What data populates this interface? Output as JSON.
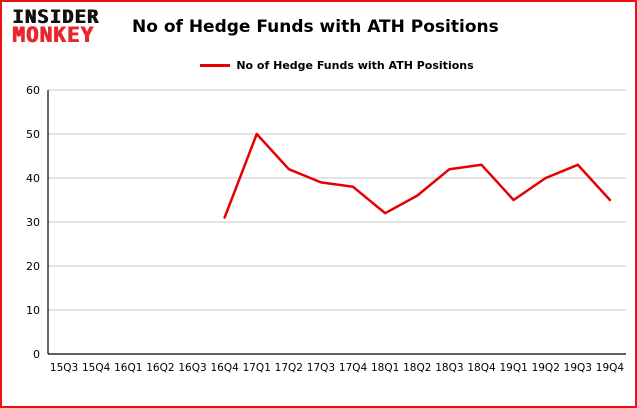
{
  "colors": {
    "line": "#e60000",
    "border": "#ee1111",
    "grid": "#c9c9c9",
    "axis": "#000000",
    "text": "#000000",
    "logo_top": "#111111",
    "logo_bottom": "#e8262d"
  },
  "logo": {
    "line1": "INSIDER",
    "line2": "MONKEY"
  },
  "header": {
    "title": "No of Hedge Funds with ATH Positions"
  },
  "legend": {
    "label": "No of Hedge Funds with ATH Positions"
  },
  "chart_data": {
    "type": "line",
    "title": "No of Hedge Funds with ATH Positions",
    "categories": [
      "15Q3",
      "15Q4",
      "16Q1",
      "16Q2",
      "16Q3",
      "16Q4",
      "17Q1",
      "17Q2",
      "17Q3",
      "17Q4",
      "18Q1",
      "18Q2",
      "18Q3",
      "18Q4",
      "19Q1",
      "19Q2",
      "19Q3",
      "19Q4"
    ],
    "series": [
      {
        "name": "No of Hedge Funds with ATH Positions",
        "values": [
          null,
          null,
          null,
          null,
          null,
          31,
          50,
          42,
          39,
          38,
          32,
          36,
          42,
          43,
          35,
          40,
          43,
          35
        ]
      }
    ],
    "xlabel": "",
    "ylabel": "",
    "ylim": [
      0,
      60
    ],
    "yticks": [
      0,
      10,
      20,
      30,
      40,
      50,
      60
    ],
    "grid": true,
    "legend_position": "top-center"
  }
}
